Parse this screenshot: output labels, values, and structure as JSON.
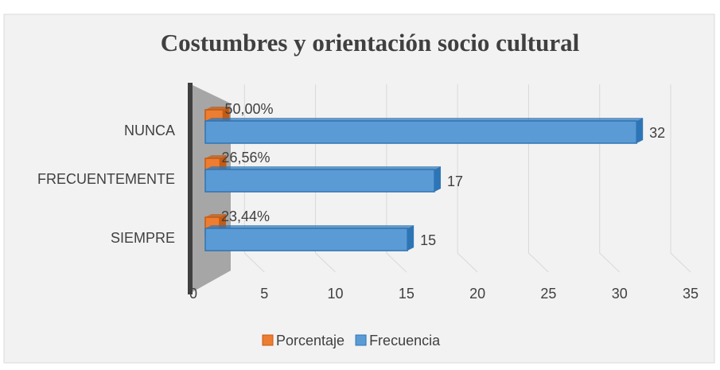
{
  "chart_data": {
    "type": "bar",
    "orientation": "horizontal",
    "title": "Costumbres y orientación socio cultural",
    "categories": [
      "NUNCA",
      "FRECUENTEMENTE",
      "SIEMPRE"
    ],
    "series": [
      {
        "name": "Porcentaje",
        "color": "#ed7d31",
        "values": [
          0.5,
          0.2656,
          0.2344
        ],
        "value_labels": [
          "50,00%",
          "26,56%",
          "23,44%"
        ]
      },
      {
        "name": "Frecuencia",
        "color": "#5b9bd5",
        "values": [
          32,
          17,
          15
        ]
      }
    ],
    "xlim": [
      0,
      35
    ],
    "xticks": [
      0,
      5,
      10,
      15,
      20,
      25,
      30,
      35
    ],
    "grid": true,
    "legend": "bottom"
  }
}
